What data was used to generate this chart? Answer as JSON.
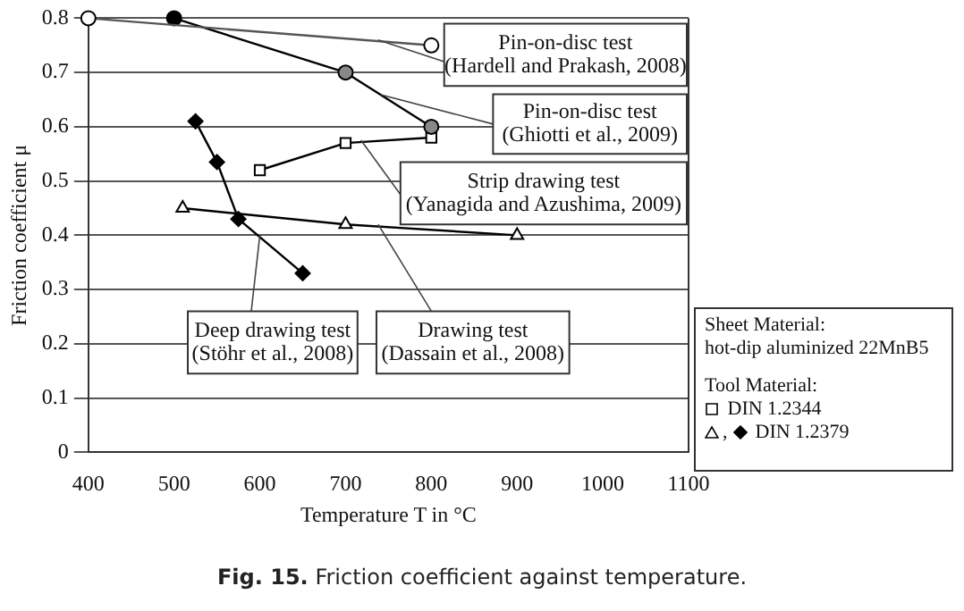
{
  "chart_data": {
    "type": "line",
    "title": "Fig. 15.  Friction coefficient against temperature.",
    "xlabel": "Temperature T in °C",
    "ylabel": "Friction coefficient μ",
    "xlim": [
      400,
      1100
    ],
    "xticks": [
      400,
      500,
      600,
      700,
      800,
      900,
      1000,
      1100
    ],
    "ylim": [
      0,
      0.8
    ],
    "yticks": [
      0,
      0.1,
      0.2,
      0.3,
      0.4,
      0.5,
      0.6,
      0.7,
      0.8
    ],
    "grid": "y",
    "legend": false,
    "series": [
      {
        "name": "Pin-on-disc test\n(Hardell and Prakash, 2008)",
        "color": "#555555",
        "marker": "circle",
        "colors": [
          "#ffffff",
          "#ffffff"
        ],
        "x": [
          400,
          800
        ],
        "values": [
          0.8,
          0.75
        ]
      },
      {
        "name": "Pin-on-disc test\n(Ghiotti et al., 2009)",
        "color": "#000000",
        "marker": "circle",
        "colors": [
          "#000000",
          "#888888",
          "#888888"
        ],
        "x": [
          500,
          700,
          800
        ],
        "values": [
          0.8,
          0.7,
          0.6
        ]
      },
      {
        "name": "Strip drawing test\n(Yanagida and Azushima, 2009)",
        "color": "#000000",
        "marker": "square",
        "colors": [
          "#ffffff",
          "#ffffff",
          "#ffffff"
        ],
        "x": [
          600,
          700,
          800
        ],
        "values": [
          0.52,
          0.57,
          0.58
        ]
      },
      {
        "name": "Drawing test\n(Dassain et al., 2008)",
        "color": "#000000",
        "marker": "triangle",
        "colors": [
          "#ffffff",
          "#ffffff",
          "#ffffff"
        ],
        "x": [
          510,
          700,
          900
        ],
        "values": [
          0.45,
          0.42,
          0.4
        ]
      },
      {
        "name": "Deep drawing test\n(Stöhr et al., 2008)",
        "color": "#000000",
        "marker": "diamond",
        "colors": [
          "#000000",
          "#000000",
          "#000000",
          "#000000"
        ],
        "x": [
          525,
          550,
          575,
          650
        ],
        "values": [
          0.61,
          0.535,
          0.43,
          0.33
        ]
      }
    ],
    "annotations": [
      "Sheet Material:",
      "hot-dip aluminized 22MnB5",
      "Tool Material:",
      "DIN 1.2344",
      ",",
      "DIN 1.2379"
    ]
  }
}
